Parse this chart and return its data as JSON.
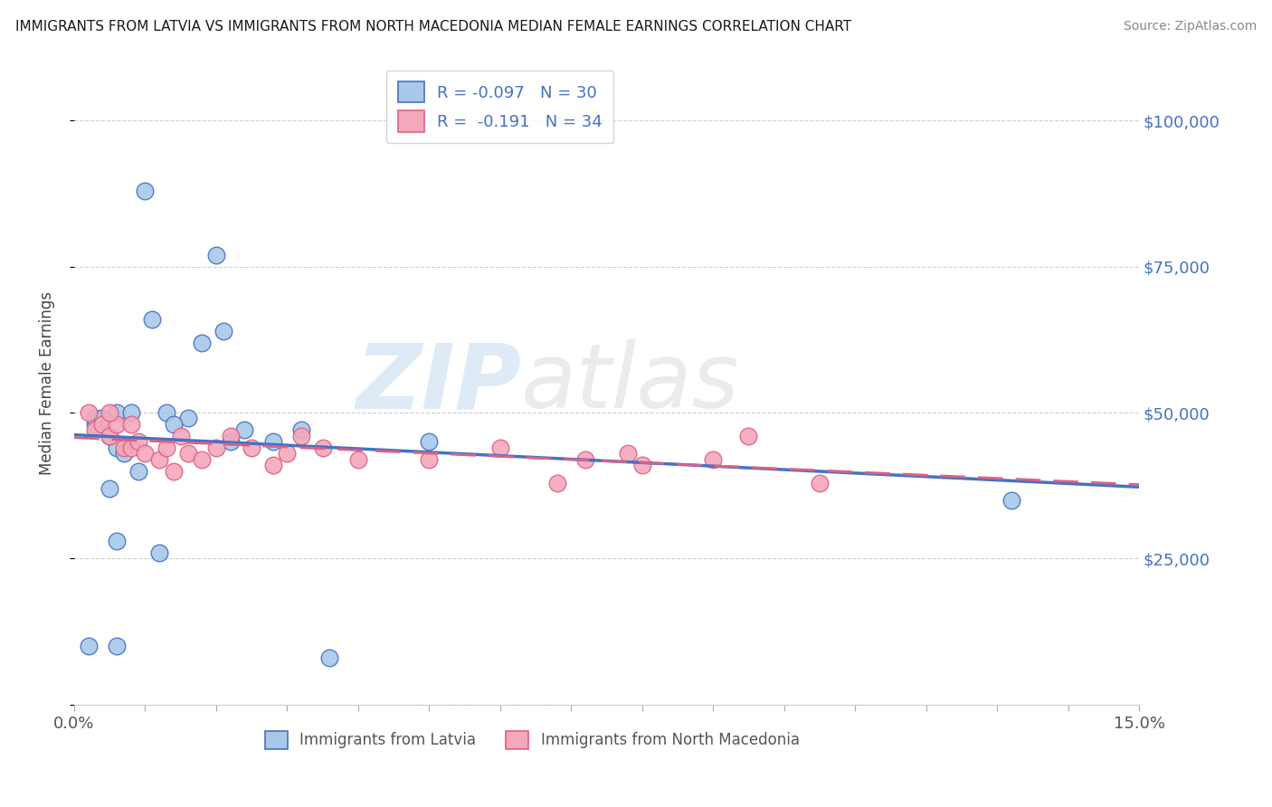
{
  "title": "IMMIGRANTS FROM LATVIA VS IMMIGRANTS FROM NORTH MACEDONIA MEDIAN FEMALE EARNINGS CORRELATION CHART",
  "source": "Source: ZipAtlas.com",
  "ylabel": "Median Female Earnings",
  "xlim": [
    0,
    0.15
  ],
  "ylim": [
    0,
    110000
  ],
  "yticks": [
    0,
    25000,
    50000,
    75000,
    100000
  ],
  "R_latvia": -0.097,
  "N_latvia": 30,
  "R_macedonia": -0.191,
  "N_macedonia": 34,
  "latvia_color": "#a8c8e8",
  "macedonia_color": "#f4a8bc",
  "line_latvia_color": "#4472c4",
  "line_macedonia_color": "#e06080",
  "latvia_x": [
    0.006,
    0.01,
    0.013,
    0.016,
    0.02,
    0.021,
    0.003,
    0.004,
    0.005,
    0.006,
    0.007,
    0.008,
    0.009,
    0.011,
    0.014,
    0.018,
    0.022,
    0.006,
    0.012,
    0.028,
    0.032,
    0.05,
    0.002,
    0.006,
    0.024,
    0.036,
    0.003,
    0.004,
    0.132,
    0.005
  ],
  "latvia_y": [
    50000,
    88000,
    50000,
    49000,
    77000,
    64000,
    48000,
    48000,
    46000,
    44000,
    43000,
    50000,
    40000,
    66000,
    48000,
    62000,
    45000,
    28000,
    26000,
    45000,
    47000,
    45000,
    10000,
    10000,
    47000,
    8000,
    49000,
    49000,
    35000,
    37000
  ],
  "macedonia_x": [
    0.002,
    0.003,
    0.004,
    0.005,
    0.006,
    0.007,
    0.008,
    0.009,
    0.01,
    0.012,
    0.013,
    0.015,
    0.016,
    0.018,
    0.02,
    0.022,
    0.025,
    0.028,
    0.03,
    0.035,
    0.04,
    0.05,
    0.06,
    0.068,
    0.072,
    0.078,
    0.08,
    0.09,
    0.095,
    0.105,
    0.005,
    0.008,
    0.014,
    0.032
  ],
  "macedonia_y": [
    50000,
    47000,
    48000,
    46000,
    48000,
    44000,
    44000,
    45000,
    43000,
    42000,
    44000,
    46000,
    43000,
    42000,
    44000,
    46000,
    44000,
    41000,
    43000,
    44000,
    42000,
    42000,
    44000,
    38000,
    42000,
    43000,
    41000,
    42000,
    46000,
    38000,
    50000,
    48000,
    40000,
    46000
  ],
  "watermark_zip": "ZIP",
  "watermark_atlas": "atlas",
  "background_color": "#ffffff",
  "grid_color": "#d0d0d0"
}
